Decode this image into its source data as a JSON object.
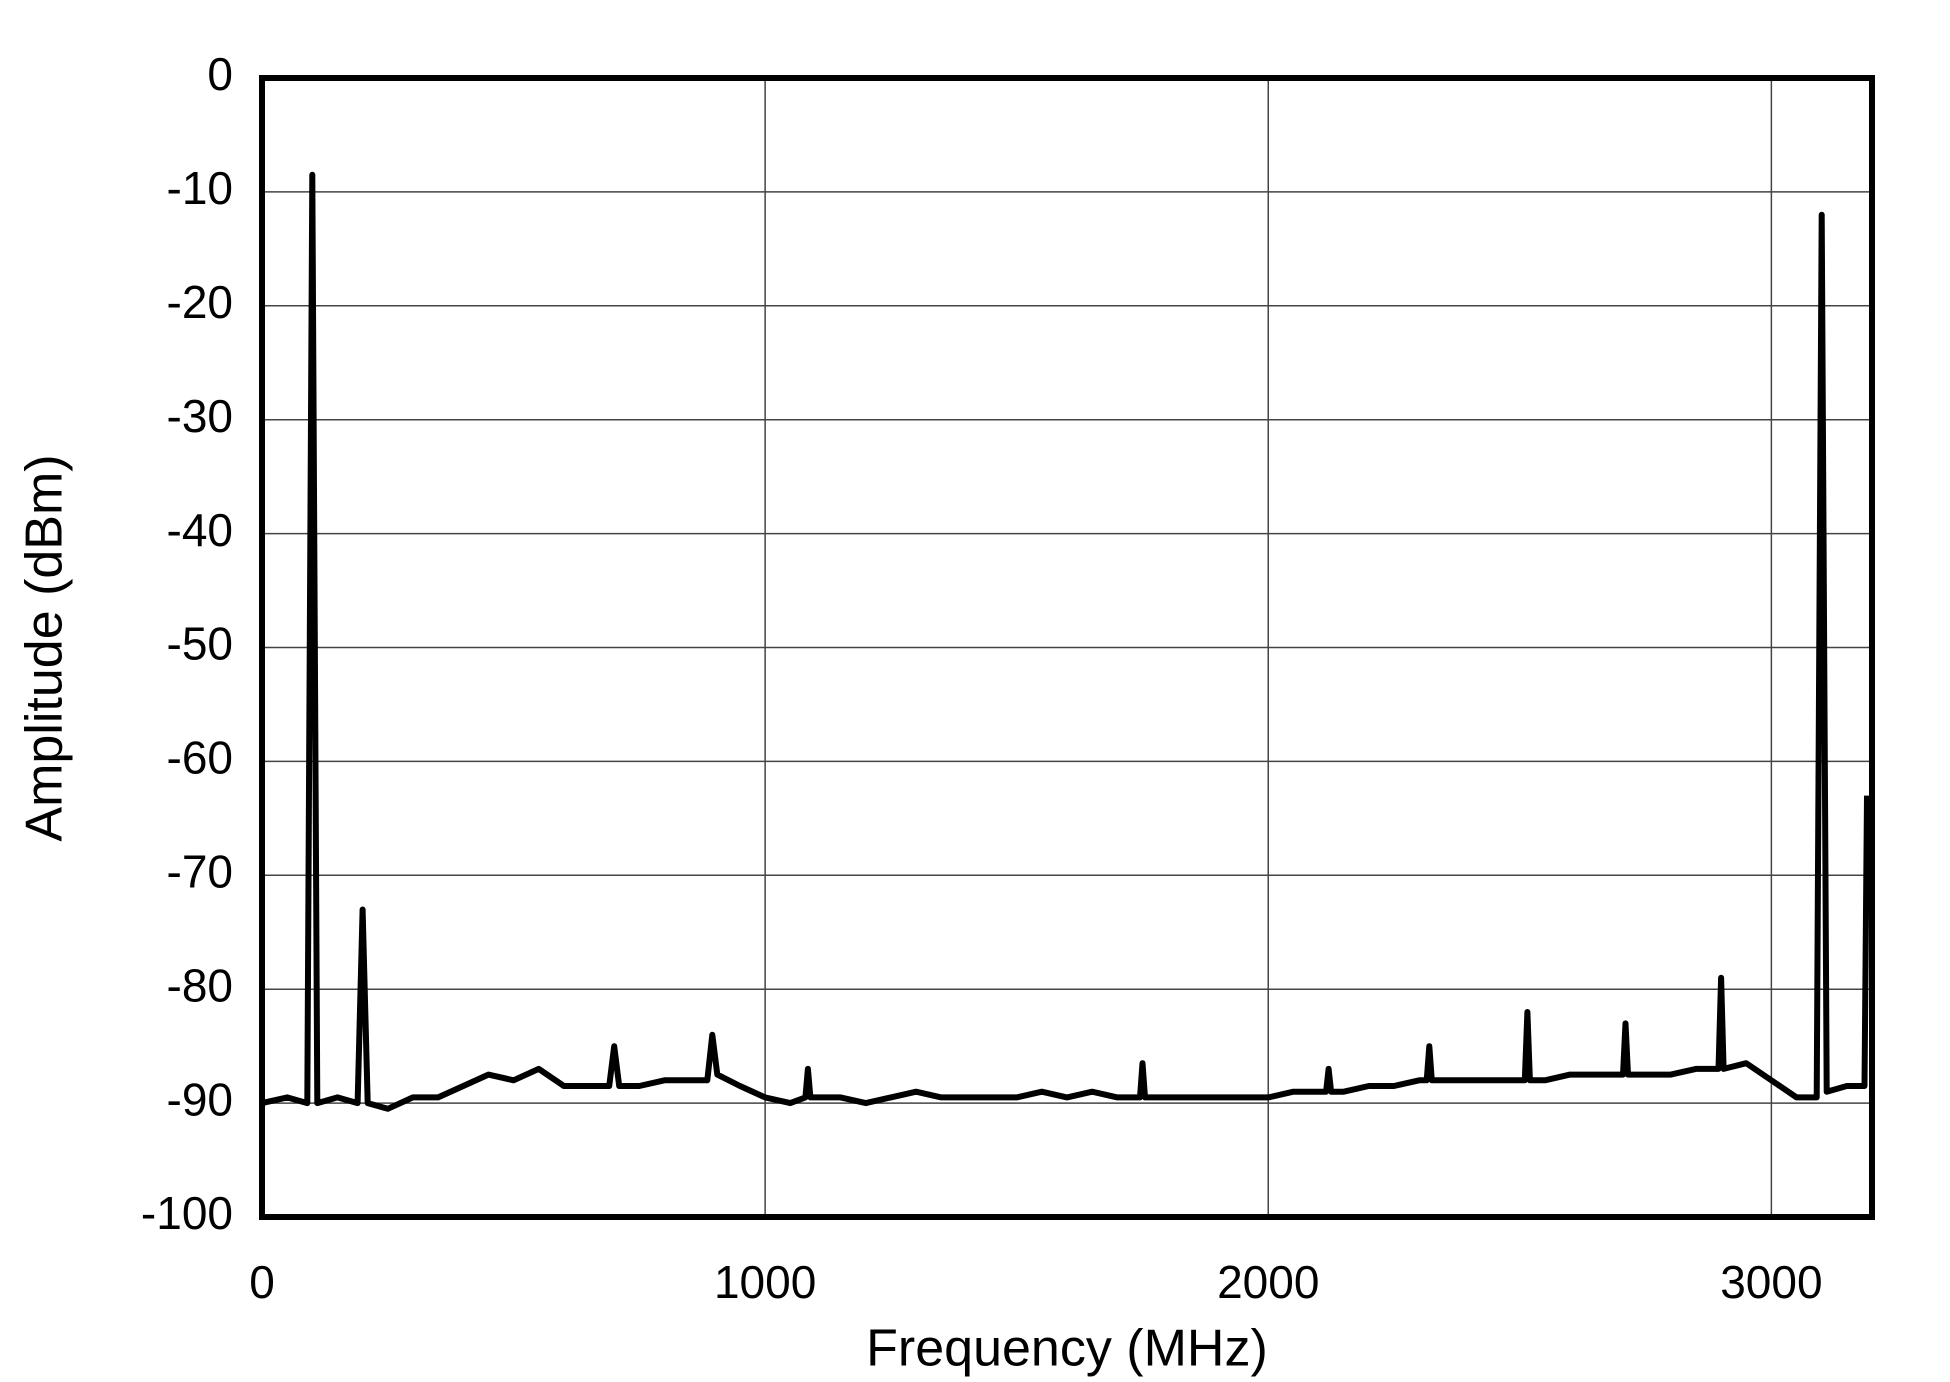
{
  "chart_data": {
    "type": "line",
    "xlabel": "Frequency (MHz)",
    "ylabel": "Amplitude (dBm)",
    "x": [
      0,
      50,
      90,
      100,
      110,
      150,
      190,
      200,
      210,
      250,
      300,
      350,
      400,
      450,
      500,
      550,
      600,
      650,
      690,
      700,
      710,
      750,
      800,
      850,
      885,
      895,
      905,
      950,
      1000,
      1050,
      1080,
      1085,
      1090,
      1150,
      1200,
      1250,
      1300,
      1350,
      1400,
      1450,
      1500,
      1550,
      1600,
      1650,
      1700,
      1745,
      1750,
      1755,
      1800,
      1850,
      1900,
      1950,
      2000,
      2050,
      2100,
      2115,
      2120,
      2125,
      2150,
      2200,
      2250,
      2300,
      2315,
      2320,
      2325,
      2350,
      2400,
      2450,
      2500,
      2510,
      2515,
      2520,
      2550,
      2600,
      2650,
      2700,
      2705,
      2710,
      2715,
      2750,
      2800,
      2850,
      2895,
      2900,
      2905,
      2950,
      3000,
      3050,
      3090,
      3100,
      3110,
      3150,
      3185,
      3190
    ],
    "values": [
      -90,
      -89.5,
      -90,
      -8.5,
      -90,
      -89.5,
      -90,
      -73,
      -90,
      -90.5,
      -89.5,
      -89.5,
      -88.5,
      -87.5,
      -88,
      -87,
      -88.5,
      -88.5,
      -88.5,
      -85,
      -88.5,
      -88.5,
      -88,
      -88,
      -88,
      -84,
      -87.5,
      -88.5,
      -89.5,
      -90,
      -89.5,
      -87,
      -89.5,
      -89.5,
      -90,
      -89.5,
      -89,
      -89.5,
      -89.5,
      -89.5,
      -89.5,
      -89,
      -89.5,
      -89,
      -89.5,
      -89.5,
      -86.5,
      -89.5,
      -89.5,
      -89.5,
      -89.5,
      -89.5,
      -89.5,
      -89,
      -89,
      -89,
      -87,
      -89,
      -89,
      -88.5,
      -88.5,
      -88,
      -88,
      -85,
      -88,
      -88,
      -88,
      -88,
      -88,
      -88,
      -82,
      -88,
      -88,
      -87.5,
      -87.5,
      -87.5,
      -87.5,
      -83,
      -87.5,
      -87.5,
      -87.5,
      -87,
      -87,
      -79,
      -87,
      -86.5,
      -88,
      -89.5,
      -89.5,
      -12,
      -89,
      -88.5,
      -88.5,
      -63
    ],
    "color": "#000000",
    "xlim": [
      0,
      3200
    ],
    "xticks": [
      0,
      1000,
      2000,
      3000
    ],
    "ylim": [
      -100,
      0
    ],
    "yticks": [
      -100,
      -90,
      -80,
      -70,
      -60,
      -50,
      -40,
      -30,
      -20,
      -10,
      0
    ],
    "grid": true
  }
}
